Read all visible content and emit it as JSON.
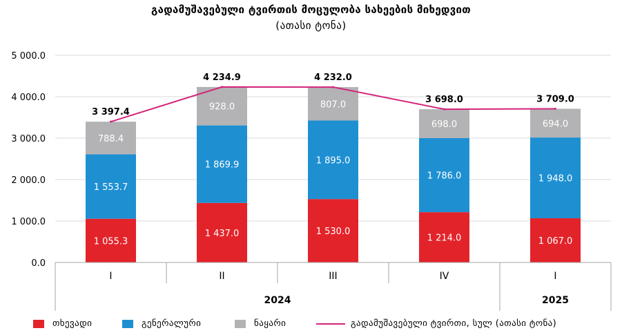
{
  "chart_data": {
    "type": "bar",
    "stacked": true,
    "title": "გადამუშავებული ტვირთის მოცულობა სახეების მიხედვით",
    "subtitle": "(ათასი ტონა)",
    "categories": [
      "I",
      "II",
      "III",
      "IV",
      "I"
    ],
    "years": [
      {
        "label": "2024",
        "quarters": 4
      },
      {
        "label": "2025",
        "quarters": 1
      }
    ],
    "series": [
      {
        "name": "თხევადი",
        "color": "#e3232a",
        "values": [
          1055.3,
          1437.0,
          1530.0,
          1214.0,
          1067.0
        ],
        "labels": [
          "1 055.3",
          "1 437.0",
          "1 530.0",
          "1 214.0",
          "1 067.0"
        ]
      },
      {
        "name": "გენერალური",
        "color": "#1e90d2",
        "values": [
          1553.7,
          1869.9,
          1895.0,
          1786.0,
          1948.0
        ],
        "labels": [
          "1 553.7",
          "1 869.9",
          "1 895.0",
          "1 786.0",
          "1 948.0"
        ]
      },
      {
        "name": "ნაყარი",
        "color": "#b3b3b5",
        "values": [
          788.4,
          928.0,
          807.0,
          698.0,
          694.0
        ],
        "labels": [
          "788.4",
          "928.0",
          "807.0",
          "698.0",
          "694.0"
        ]
      }
    ],
    "total_line": {
      "name": "გადამუშავებული ტვირთი, სულ (ათასი ტონა)",
      "color": "#d4237a",
      "values": [
        3397.4,
        4234.9,
        4232.0,
        3698.0,
        3709.0
      ],
      "labels": [
        "3 397.4",
        "4 234.9",
        "4 232.0",
        "3 698.0",
        "3 709.0"
      ]
    },
    "y_ticks": [
      0,
      1000,
      2000,
      3000,
      4000,
      5000
    ],
    "y_tick_labels": [
      "0.0",
      "1 000.0",
      "2 000.0",
      "3 000.0",
      "4 000.0",
      "5 000.0"
    ],
    "ylim": [
      0,
      5000
    ],
    "grid": true,
    "legend_position": "bottom"
  }
}
